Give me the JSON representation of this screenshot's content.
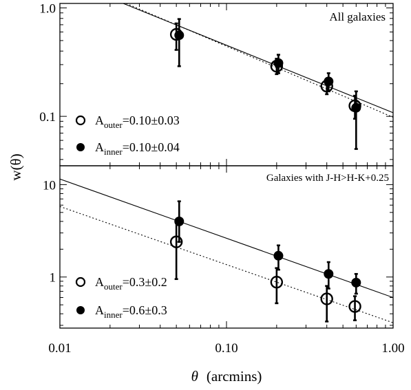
{
  "chart_data": {
    "type": "scatter",
    "shared_x": {
      "label": "θ",
      "unit": "(arcmins)",
      "scale": "log",
      "range": [
        0.01,
        1.0
      ],
      "ticks": [
        "0.01",
        "0.10",
        "1.00"
      ]
    },
    "ylabel": "w(θ)",
    "panels": [
      {
        "name": "top",
        "title": "All galaxies",
        "yscale": "log",
        "yrange": [
          0.035,
          1.1
        ],
        "yticks": [
          "0.1",
          "1.0"
        ],
        "legend": [
          {
            "marker": "open-circle",
            "sym": "A",
            "sub": "outer",
            "text": "=0.10±0.03"
          },
          {
            "marker": "filled-circle",
            "sym": "A",
            "sub": "inner",
            "text": "=0.10±0.04"
          }
        ],
        "series": [
          {
            "name": "outer",
            "marker": "open-circle",
            "line": "dotted",
            "x": [
              0.05,
              0.2,
              0.4,
              0.59
            ],
            "y": [
              0.57,
              0.29,
              0.19,
              0.125
            ],
            "err_lo": [
              0.41,
              0.245,
              0.16,
              0.095
            ],
            "err_hi": [
              0.72,
              0.34,
              0.22,
              0.155
            ],
            "fit": [
              [
                0.025,
                1.1
              ],
              [
                1.0,
                0.098
              ]
            ]
          },
          {
            "name": "inner",
            "marker": "filled-circle",
            "line": "solid",
            "x": [
              0.052,
              0.205,
              0.41,
              0.6
            ],
            "y": [
              0.56,
              0.31,
              0.21,
              0.12
            ],
            "err_lo": [
              0.29,
              0.25,
              0.17,
              0.05
            ],
            "err_hi": [
              0.79,
              0.37,
              0.25,
              0.17
            ],
            "fit": [
              [
                0.024,
                1.1
              ],
              [
                1.0,
                0.108
              ]
            ]
          }
        ]
      },
      {
        "name": "bottom",
        "title": "Galaxies with J-H>H-K+0.25",
        "yscale": "log",
        "yrange": [
          0.28,
          16
        ],
        "yticks": [
          "1",
          "10"
        ],
        "legend": [
          {
            "marker": "open-circle",
            "sym": "A",
            "sub": "outer",
            "text": "=0.3±0.2"
          },
          {
            "marker": "filled-circle",
            "sym": "A",
            "sub": "inner",
            "text": "=0.6±0.3"
          }
        ],
        "series": [
          {
            "name": "outer",
            "marker": "open-circle",
            "line": "dotted",
            "x": [
              0.05,
              0.2,
              0.4,
              0.59
            ],
            "y": [
              2.4,
              0.88,
              0.58,
              0.48
            ],
            "err_lo": [
              0.95,
              0.52,
              0.33,
              0.34
            ],
            "err_hi": [
              4.0,
              1.25,
              0.8,
              0.62
            ],
            "fit": [
              [
                0.01,
                5.8
              ],
              [
                1.0,
                0.32
              ]
            ]
          },
          {
            "name": "inner",
            "marker": "filled-circle",
            "line": "solid",
            "x": [
              0.052,
              0.205,
              0.41,
              0.6
            ],
            "y": [
              4.0,
              1.7,
              1.08,
              0.87
            ],
            "err_lo": [
              2.4,
              1.2,
              0.75,
              0.66
            ],
            "err_hi": [
              6.6,
              2.2,
              1.45,
              1.08
            ],
            "fit": [
              [
                0.01,
                11.5
              ],
              [
                1.0,
                0.6
              ]
            ]
          }
        ]
      }
    ]
  }
}
